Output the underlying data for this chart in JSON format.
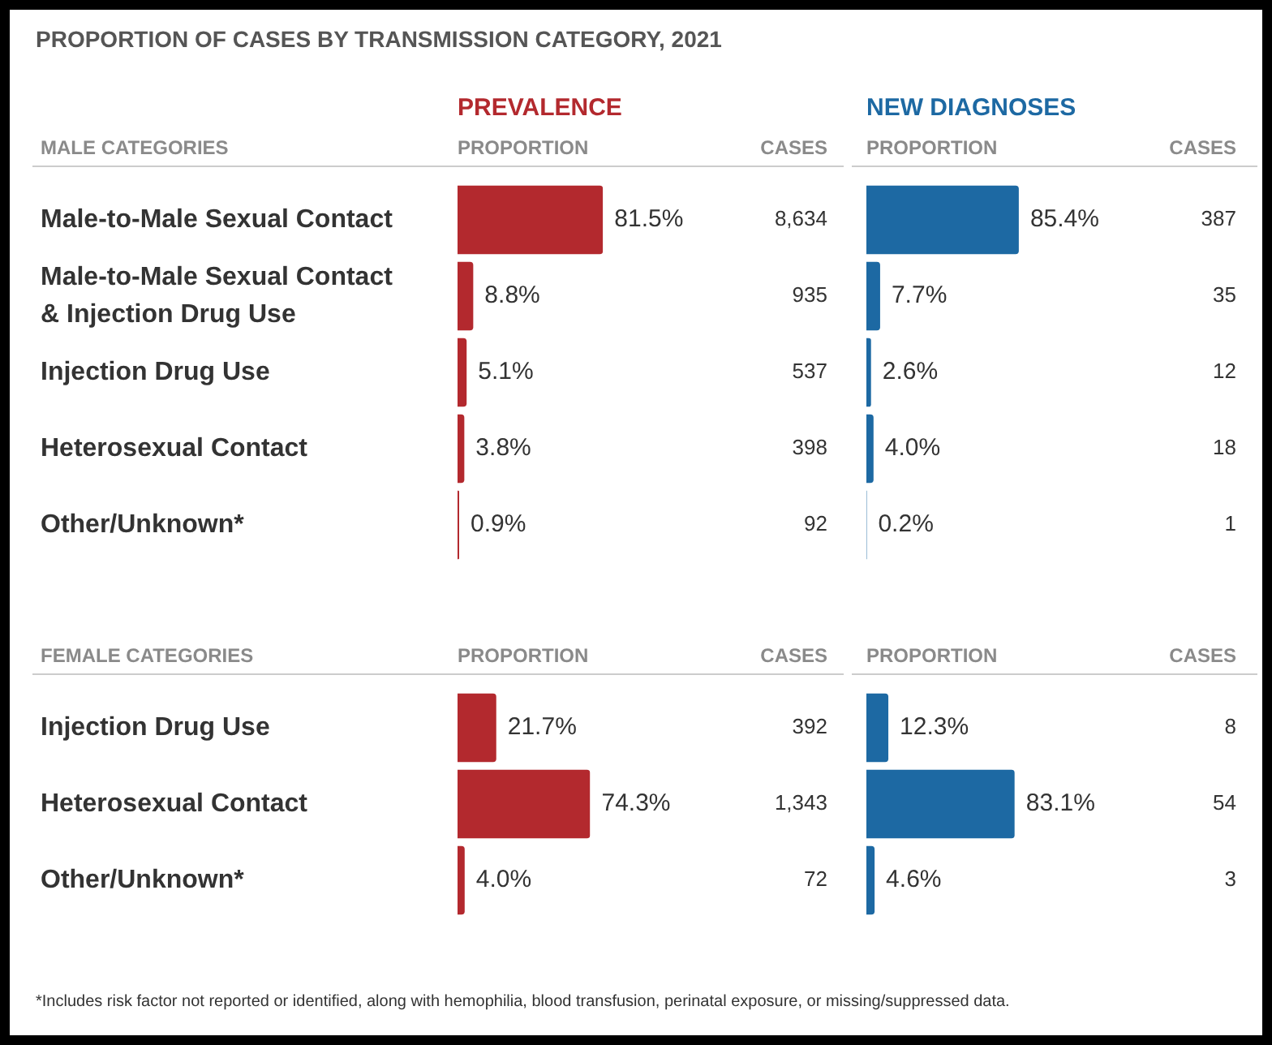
{
  "chart_data": [
    {
      "type": "bar",
      "orientation": "horizontal",
      "title": "PROPORTION OF CASES BY TRANSMISSION CATEGORY, 2021",
      "subtitle": "PREVALENCE",
      "ylabel": "MALE CATEGORIES",
      "xlabel": "PROPORTION",
      "tick_labels": "y",
      "categories": [
        "Male-to-Male Sexual Contact",
        "Male-to-Male Sexual Contact\n& Injection Drug Use",
        "Injection Drug Use",
        "Heterosexual Contact",
        "Other/Unknown*"
      ],
      "values": [
        81.5,
        8.8,
        5.1,
        3.8,
        0.9
      ],
      "color": "#b3292e",
      "value_labels": [
        "81.5%",
        "8.8%",
        "5.1%",
        "3.8%",
        "0.9%"
      ],
      "annotations": [
        "CASES",
        "8,634",
        "935",
        "537",
        "398",
        "92"
      ]
    },
    {
      "type": "bar",
      "orientation": "horizontal",
      "subtitle": "NEW DIAGNOSES",
      "xlabel": "PROPORTION",
      "tick_labels": false,
      "categories": [
        null,
        null,
        null,
        null,
        null
      ],
      "values": [
        85.4,
        7.7,
        2.6,
        4.0,
        0.2
      ],
      "color": "#1d69a3",
      "value_labels": [
        "85.4%",
        "7.7%",
        "2.6%",
        "4.0%",
        "0.2%"
      ],
      "annotations": [
        "CASES",
        "387",
        "35",
        "12",
        "18",
        "1"
      ]
    },
    {
      "type": "bar",
      "orientation": "horizontal",
      "ylabel": "FEMALE CATEGORIES",
      "xlabel": "PROPORTION",
      "tick_labels": "y",
      "categories": [
        "Injection Drug Use",
        "Heterosexual Contact",
        "Other/Unknown*"
      ],
      "values": [
        21.7,
        74.3,
        4.0
      ],
      "color": "#b3292e",
      "value_labels": [
        "21.7%",
        "74.3%",
        "4.0%"
      ],
      "annotations": [
        "CASES",
        "392",
        "1,343",
        "72"
      ]
    },
    {
      "type": "bar",
      "orientation": "horizontal",
      "xlabel": "PROPORTION",
      "tick_labels": false,
      "categories": [
        null,
        null,
        null
      ],
      "values": [
        12.3,
        83.1,
        4.6
      ],
      "color": "#1d69a3",
      "value_labels": [
        "12.3%",
        "83.1%",
        "4.6%"
      ],
      "annotations": [
        "CASES",
        "8",
        "54",
        "3",
        "*Includes risk factor not reported or identified, along with hemophilia, blood transfusion, perinatal exposure, or missing/suppressed data."
      ]
    }
  ]
}
